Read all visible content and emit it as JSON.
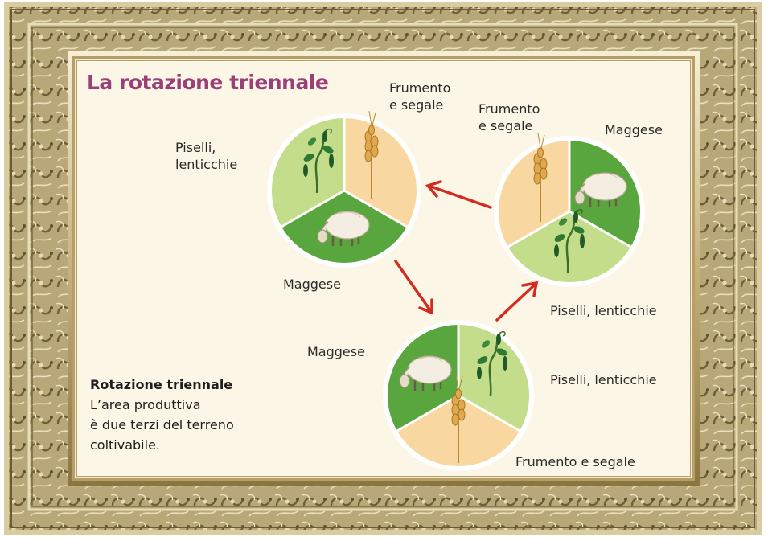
{
  "title": "La rotazione triennale",
  "labels": {
    "a_wheat": "Frumento\ne segale",
    "a_peas": "Piselli,\nlenticchie",
    "a_fallow": "Maggese",
    "b_wheat": "Frumento\ne segale",
    "b_fallow": "Maggese",
    "b_peas": "Piselli, lenticchie",
    "c_fallow": "Maggese",
    "c_peas": "Piselli, lenticchie",
    "c_wheat": "Frumento e segale"
  },
  "caption": {
    "title": "Rotazione triennale",
    "body": "L’area produttiva\nè due terzi del terreno\ncoltivabile."
  },
  "colors": {
    "wheat_sector": "#f8d8a0",
    "peas_sector": "#c4dd8a",
    "fallow_sector": "#5aa63e",
    "arrow": "#d42a20",
    "title": "#9b3f78",
    "frame_gold": "#b3a06a",
    "background": "#fcf6e6"
  },
  "icons": [
    "wheat-icon",
    "pea-plant-icon",
    "sheep-icon",
    "arrow-icon"
  ]
}
